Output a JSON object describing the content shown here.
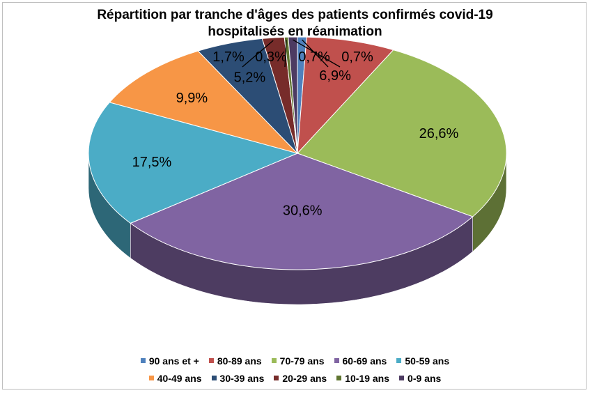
{
  "chart_data": {
    "type": "pie",
    "title": "Répartition par tranche d'âges des patients confirmés covid-19 hospitalisés en réanimation",
    "title_lines": [
      "Répartition par tranche d'âges des patients confirmés covid-19",
      "hospitalisés en réanimation"
    ],
    "style": "3d",
    "legend_position": "bottom",
    "categories": [
      "90 ans et +",
      "80-89 ans",
      "70-79 ans",
      "60-69 ans",
      "50-59 ans",
      "40-49 ans",
      "30-39 ans",
      "20-29 ans",
      "10-19 ans",
      "0-9 ans"
    ],
    "values": [
      0.7,
      6.9,
      26.6,
      30.6,
      17.5,
      9.9,
      5.2,
      1.7,
      0.3,
      0.7
    ],
    "data_labels": [
      "0,7%",
      "6,9%",
      "26,6%",
      "30,6%",
      "17,5%",
      "9,9%",
      "5,2%",
      "1,7%",
      "0,3%",
      "0,7%"
    ],
    "colors": [
      "#4f81bd",
      "#c0504d",
      "#9bbb59",
      "#8064a2",
      "#4bacc6",
      "#f79646",
      "#2c4d75",
      "#772c2a",
      "#5f7530",
      "#4d3b62"
    ],
    "unit": "%"
  }
}
